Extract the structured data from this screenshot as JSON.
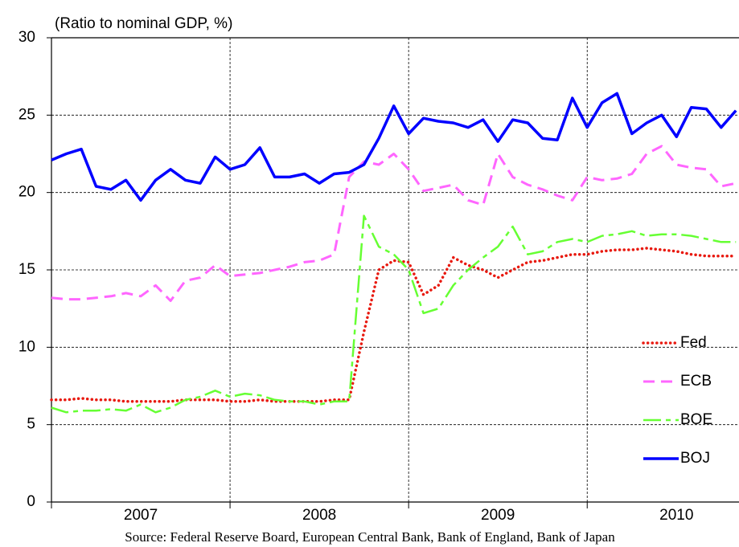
{
  "chart_data": {
    "type": "line",
    "title": "(Ratio to nominal GDP, %)",
    "source": "Source: Federal Reserve Board, European Central Bank, Bank of England, Bank of Japan",
    "x": [
      2007,
      2007.083,
      2007.167,
      2007.25,
      2007.333,
      2007.417,
      2007.5,
      2007.583,
      2007.667,
      2007.75,
      2007.833,
      2007.917,
      2008,
      2008.083,
      2008.167,
      2008.25,
      2008.333,
      2008.417,
      2008.5,
      2008.583,
      2008.667,
      2008.75,
      2008.833,
      2008.917,
      2009,
      2009.083,
      2009.167,
      2009.25,
      2009.333,
      2009.417,
      2009.5,
      2009.583,
      2009.667,
      2009.75,
      2009.833,
      2009.917,
      2010,
      2010.083,
      2010.167,
      2010.25,
      2010.333,
      2010.417,
      2010.5,
      2010.583,
      2010.667,
      2010.75,
      2010.833
    ],
    "xlim": [
      2007,
      2010.85
    ],
    "xticks": [
      2007,
      2008,
      2009,
      2010
    ],
    "ylim": [
      0,
      30
    ],
    "yticks": [
      0,
      5,
      10,
      15,
      20,
      25,
      30
    ],
    "grid": true,
    "legend": "lower right",
    "series": [
      {
        "name": "Fed",
        "color": "#e8190f",
        "style": "dotted",
        "values": [
          6.6,
          6.6,
          6.7,
          6.6,
          6.6,
          6.5,
          6.5,
          6.5,
          6.5,
          6.6,
          6.6,
          6.6,
          6.5,
          6.5,
          6.6,
          6.5,
          6.5,
          6.5,
          6.5,
          6.6,
          6.6,
          11.0,
          15.0,
          15.6,
          15.5,
          13.4,
          14.0,
          15.8,
          15.3,
          15.0,
          14.5,
          15.0,
          15.5,
          15.6,
          15.8,
          16.0,
          16.0,
          16.2,
          16.3,
          16.3,
          16.4,
          16.3,
          16.2,
          16.0,
          15.9,
          15.9,
          15.9
        ]
      },
      {
        "name": "ECB",
        "color": "#ff66ff",
        "style": "dashed",
        "values": [
          13.2,
          13.1,
          13.1,
          13.2,
          13.3,
          13.5,
          13.3,
          14.0,
          13.0,
          14.3,
          14.5,
          15.3,
          14.6,
          14.7,
          14.8,
          15.0,
          15.2,
          15.5,
          15.6,
          16.0,
          21.0,
          22.0,
          21.8,
          22.5,
          21.5,
          20.1,
          20.3,
          20.5,
          19.5,
          19.2,
          22.5,
          21.0,
          20.5,
          20.2,
          19.8,
          19.5,
          21.0,
          20.8,
          20.9,
          21.2,
          22.5,
          23.0,
          21.8,
          21.6,
          21.5,
          20.4,
          20.6
        ]
      },
      {
        "name": "BOE",
        "color": "#66ff33",
        "style": "long-dash",
        "values": [
          6.1,
          5.8,
          5.9,
          5.9,
          6.0,
          5.9,
          6.3,
          5.8,
          6.1,
          6.6,
          6.8,
          7.2,
          6.8,
          7.0,
          6.9,
          6.6,
          6.5,
          6.5,
          6.3,
          6.5,
          6.5,
          18.5,
          16.5,
          16.0,
          15.0,
          12.2,
          12.5,
          14.0,
          15.0,
          15.8,
          16.5,
          17.8,
          16.0,
          16.2,
          16.8,
          17.0,
          16.8,
          17.2,
          17.3,
          17.5,
          17.2,
          17.3,
          17.3,
          17.2,
          17.0,
          16.8,
          16.8
        ]
      },
      {
        "name": "BOJ",
        "color": "#0000ff",
        "style": "solid",
        "values": [
          22.1,
          22.5,
          22.8,
          20.4,
          20.2,
          20.8,
          19.5,
          20.8,
          21.5,
          20.8,
          20.6,
          22.3,
          21.5,
          21.8,
          22.9,
          21.0,
          21.0,
          21.2,
          20.6,
          21.2,
          21.3,
          21.8,
          23.5,
          25.6,
          23.8,
          24.8,
          24.6,
          24.5,
          24.2,
          24.7,
          23.3,
          24.7,
          24.5,
          23.5,
          23.4,
          26.1,
          24.2,
          25.8,
          26.4,
          23.8,
          24.5,
          25.0,
          23.6,
          25.5,
          25.4,
          24.2,
          25.3
        ]
      }
    ]
  }
}
